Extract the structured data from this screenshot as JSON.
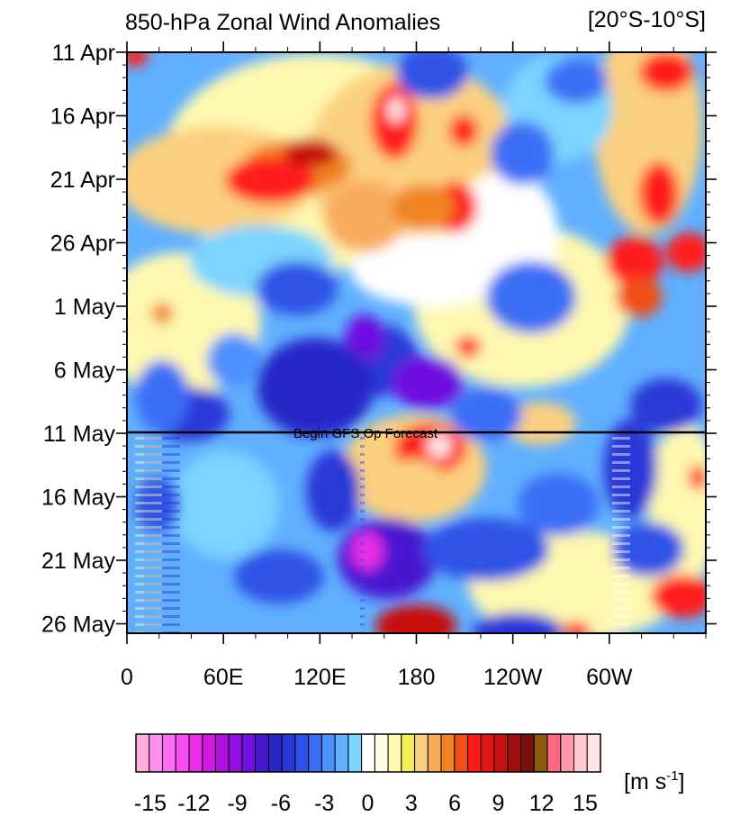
{
  "chart_data": {
    "type": "heatmap",
    "title": "850-hPa Zonal Wind Anomalies",
    "region": "[20°S-10°S]",
    "x_ticks": [
      "0",
      "60E",
      "120E",
      "180",
      "120W",
      "60W"
    ],
    "y_ticks": [
      "11 Apr",
      "16 Apr",
      "21 Apr",
      "26 Apr",
      "1 May",
      "6 May",
      "11 May",
      "16 May",
      "21 May",
      "26 May"
    ],
    "annotation": "Begin GFS Op Forecast",
    "annotation_date": "11 May",
    "colorbar": {
      "unit_label": "[m s-1]",
      "tick_labels": [
        "-15",
        "-12",
        "-9",
        "-6",
        "-3",
        "0",
        "3",
        "6",
        "9",
        "12",
        "15"
      ],
      "colors": [
        "#ffaee0",
        "#ff90f0",
        "#ff6ef2",
        "#f84ef0",
        "#e82ee8",
        "#d01ae0",
        "#b010e0",
        "#9010e0",
        "#7010e0",
        "#4a18d0",
        "#2828c8",
        "#2a38d8",
        "#2f52e6",
        "#3a6ef5",
        "#4d90ff",
        "#60b0ff",
        "#7cd4ff",
        "#ffffff",
        "#fffde0",
        "#fff8b0",
        "#f5ec5a",
        "#fbd080",
        "#f8ac5c",
        "#f08424",
        "#f05018",
        "#ff1a1a",
        "#e21414",
        "#c81010",
        "#a00e0e",
        "#7a1010",
        "#8a5a10",
        "#ff6880",
        "#ff98a8",
        "#ffc8d0",
        "#ffe4e8"
      ]
    },
    "xlim": [
      0,
      360
    ],
    "ylim": [
      "11 Apr",
      "28 May"
    ]
  }
}
